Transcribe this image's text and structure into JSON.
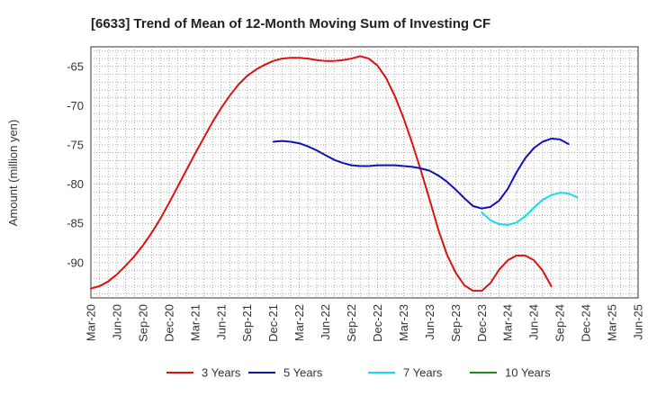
{
  "chart_data": {
    "type": "line",
    "title": "[6633]  Trend of Mean of 12-Month Moving Sum of Investing CF",
    "xlabel": "",
    "ylabel": "Amount (million yen)",
    "ylim": [
      -94.5,
      -62.5
    ],
    "yticks": [
      -65,
      -70,
      -75,
      -80,
      -85,
      -90
    ],
    "x_tick_labels": [
      "Mar-20",
      "Jun-20",
      "Sep-20",
      "Dec-20",
      "Mar-21",
      "Jun-21",
      "Sep-21",
      "Dec-21",
      "Mar-22",
      "Jun-22",
      "Sep-22",
      "Dec-22",
      "Mar-23",
      "Jun-23",
      "Sep-23",
      "Dec-23",
      "Mar-24",
      "Jun-24",
      "Sep-24",
      "Dec-24",
      "Mar-25",
      "Jun-25"
    ],
    "x_months_total": 63,
    "grid": true,
    "legend_position": "bottom",
    "series": [
      {
        "name": "3 Years",
        "color": "#dd1111",
        "start_index": 0,
        "values": [
          -93.3,
          -93.0,
          -92.4,
          -91.5,
          -90.4,
          -89.2,
          -87.8,
          -86.2,
          -84.4,
          -82.4,
          -80.3,
          -78.2,
          -76.1,
          -74.1,
          -72.1,
          -70.3,
          -68.7,
          -67.3,
          -66.2,
          -65.4,
          -64.8,
          -64.3,
          -64.0,
          -63.9,
          -63.9,
          -64.0,
          -64.2,
          -64.3,
          -64.3,
          -64.2,
          -64.0,
          -63.7,
          -64.0,
          -64.9,
          -66.5,
          -68.8,
          -71.6,
          -74.8,
          -78.3,
          -82.0,
          -85.8,
          -89.0,
          -91.3,
          -92.9,
          -93.6,
          -93.6,
          -92.6,
          -90.9,
          -89.7,
          -89.1,
          -89.1,
          -89.7,
          -91.0,
          -93.0
        ]
      },
      {
        "name": "5 Years",
        "color": "#1111bb",
        "start_index": 21,
        "values": [
          -74.6,
          -74.5,
          -74.6,
          -74.8,
          -75.2,
          -75.7,
          -76.3,
          -76.9,
          -77.3,
          -77.6,
          -77.7,
          -77.7,
          -77.6,
          -77.6,
          -77.6,
          -77.7,
          -77.8,
          -78.0,
          -78.3,
          -78.9,
          -79.7,
          -80.7,
          -81.8,
          -82.8,
          -83.1,
          -82.9,
          -82.1,
          -80.6,
          -78.5,
          -76.7,
          -75.4,
          -74.6,
          -74.2,
          -74.3,
          -74.9
        ]
      },
      {
        "name": "7 Years",
        "color": "#11ddee",
        "start_index": 45,
        "values": [
          -83.6,
          -84.6,
          -85.1,
          -85.2,
          -84.9,
          -84.1,
          -83.0,
          -82.0,
          -81.4,
          -81.1,
          -81.2,
          -81.7
        ]
      },
      {
        "name": "10 Years",
        "color": "#228822",
        "start_index": 0,
        "values": []
      }
    ]
  }
}
